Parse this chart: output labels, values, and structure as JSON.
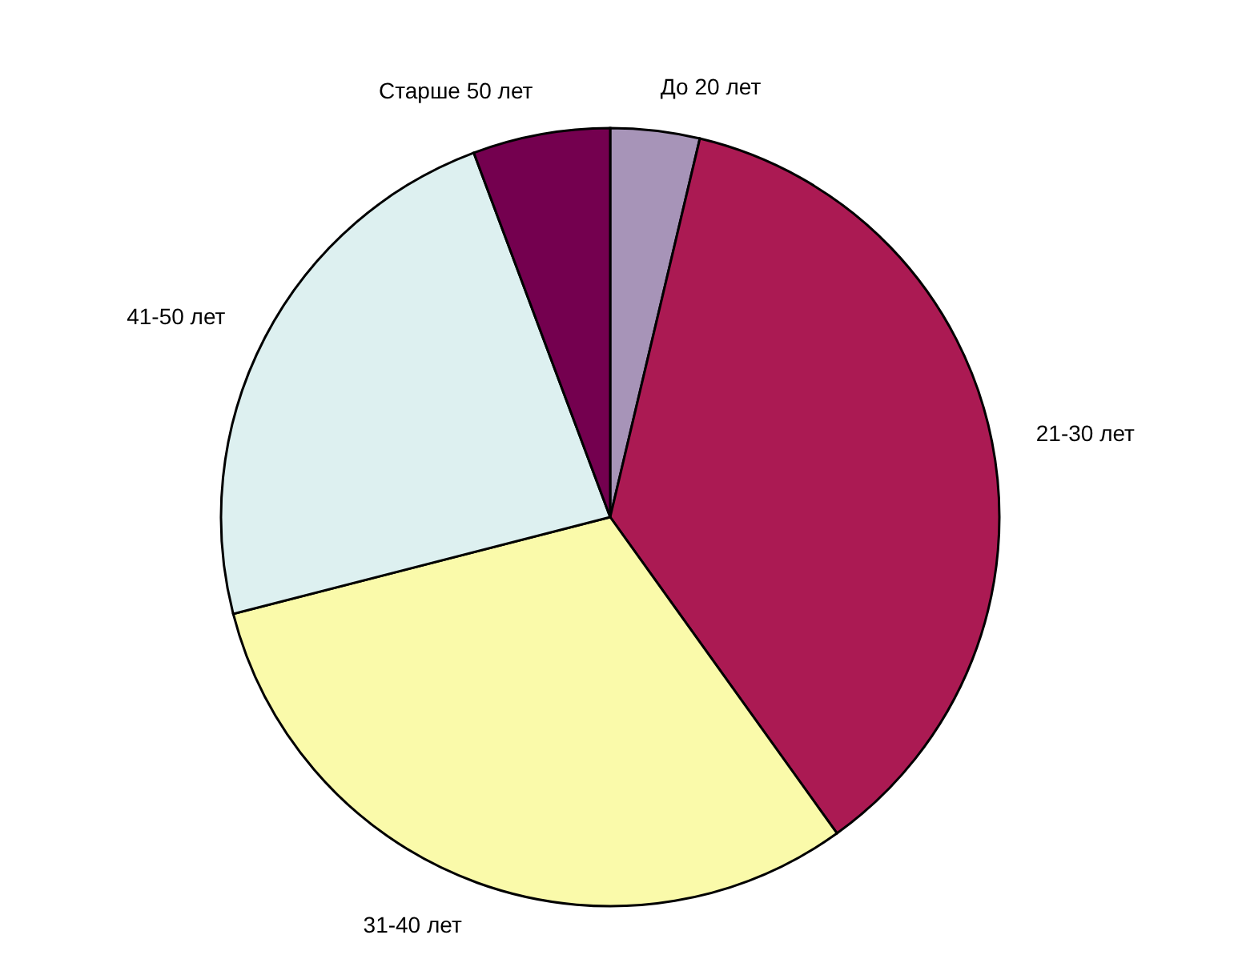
{
  "chart_data": {
    "type": "pie",
    "categories": [
      "До 20 лет",
      "21-30 лет",
      "31-40 лет",
      "41-50 лет",
      "Старше 50 лет"
    ],
    "values": [
      3.7,
      36.4,
      30.9,
      23.3,
      5.7
    ],
    "colors": [
      "#a794b8",
      "#ab1a53",
      "#fafaaa",
      "#ddf0f0",
      "#74004f"
    ],
    "legend": false
  }
}
